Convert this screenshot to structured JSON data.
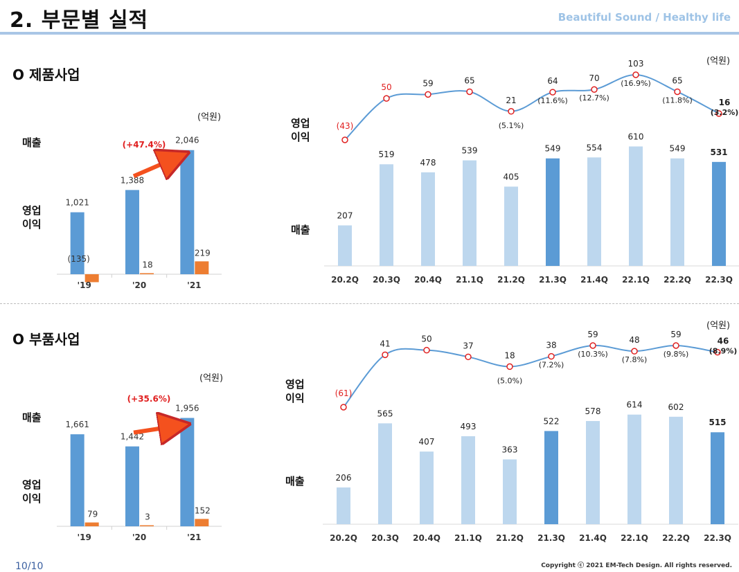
{
  "page": {
    "title": "2. 부문별 실적",
    "tagline": "Beautiful Sound / Healthy life",
    "page_number": "10/10",
    "copyright": "Copyright ⓒ 2021 EM-Tech Design. All rights reserved.",
    "colors": {
      "bar_blue": "#5b9bd5",
      "bar_orange": "#ed7d31",
      "bar_light": "#bdd7ee",
      "line": "#5b9bd5",
      "marker": "#e02020",
      "arrow": "#f4511e"
    }
  },
  "product": {
    "section_title": "O 제품사업",
    "label_sales": "매출",
    "label_op": "영업\n이익",
    "label_op_right": "영업\n이익",
    "label_sales_right": "매출",
    "unit_left": "(억원)",
    "unit_right": "(억원)"
  },
  "parts": {
    "section_title": "O 부품사업",
    "label_sales": "매출",
    "label_op": "영업\n이익",
    "label_op_right": "영업\n이익",
    "label_sales_right": "매출",
    "unit_left": "(억원)",
    "unit_right": "(억원)"
  },
  "chart_data": [
    {
      "id": "product-annual",
      "type": "bar",
      "categories": [
        "'19",
        "'20",
        "'21"
      ],
      "series": [
        {
          "values": [
            1021,
            1388,
            2046
          ],
          "labels": [
            "1,021",
            "1,388",
            "2,046"
          ]
        },
        {
          "values": [
            -135,
            18,
            219
          ],
          "labels": [
            "(135)",
            "18",
            "219"
          ]
        }
      ],
      "annotation": "(+47.4%)",
      "ylim": [
        -150,
        2100
      ]
    },
    {
      "id": "product-quarterly",
      "type": "bar",
      "categories": [
        "20.2Q",
        "20.3Q",
        "20.4Q",
        "21.1Q",
        "21.2Q",
        "21.3Q",
        "21.4Q",
        "22.1Q",
        "22.2Q",
        "22.3Q"
      ],
      "sales": [
        207,
        519,
        478,
        539,
        405,
        549,
        554,
        610,
        549,
        531
      ],
      "sales_labels": [
        "207",
        "519",
        "478",
        "539",
        "405",
        "549",
        "554",
        "610",
        "549",
        "531"
      ],
      "highlight": [
        false,
        false,
        false,
        false,
        false,
        true,
        false,
        false,
        false,
        true
      ],
      "op_profit": [
        -43,
        50,
        59,
        65,
        21,
        64,
        70,
        103,
        65,
        16
      ],
      "op_labels": [
        "(43)",
        "50",
        "59",
        "65",
        "21",
        "64",
        "70",
        "103",
        "65",
        "16"
      ],
      "op_margin": [
        "",
        "",
        "",
        "",
        "(5.1%)",
        "(11.6%)",
        "(12.7%)",
        "(16.9%)",
        "(11.8%)",
        "(3.2%)"
      ],
      "ylim": [
        0,
        640
      ]
    },
    {
      "id": "parts-annual",
      "type": "bar",
      "categories": [
        "'19",
        "'20",
        "'21"
      ],
      "series": [
        {
          "values": [
            1661,
            1442,
            1956
          ],
          "labels": [
            "1,661",
            "1,442",
            "1,956"
          ]
        },
        {
          "values": [
            79,
            3,
            152
          ],
          "labels": [
            "79",
            "3",
            "152"
          ]
        }
      ],
      "annotation": "(+35.6%)",
      "ylim": [
        0,
        2100
      ]
    },
    {
      "id": "parts-quarterly",
      "type": "bar",
      "categories": [
        "20.2Q",
        "20.3Q",
        "20.4Q",
        "21.1Q",
        "21.2Q",
        "21.3Q",
        "21.4Q",
        "22.1Q",
        "22.2Q",
        "22.3Q"
      ],
      "sales": [
        206,
        565,
        407,
        493,
        363,
        522,
        578,
        614,
        602,
        515
      ],
      "sales_labels": [
        "206",
        "565",
        "407",
        "493",
        "363",
        "522",
        "578",
        "614",
        "602",
        "515"
      ],
      "highlight": [
        false,
        false,
        false,
        false,
        false,
        true,
        false,
        false,
        false,
        true
      ],
      "op_profit": [
        -61,
        41,
        50,
        37,
        18,
        38,
        59,
        48,
        59,
        46
      ],
      "op_labels": [
        "(61)",
        "41",
        "50",
        "37",
        "18",
        "38",
        "59",
        "48",
        "59",
        "46"
      ],
      "op_margin": [
        "",
        "",
        "",
        "",
        "(5.0%)",
        "(7.2%)",
        "(10.3%)",
        "(7.8%)",
        "(9.8%)",
        "(8.9%)"
      ],
      "ylim": [
        0,
        640
      ]
    }
  ]
}
